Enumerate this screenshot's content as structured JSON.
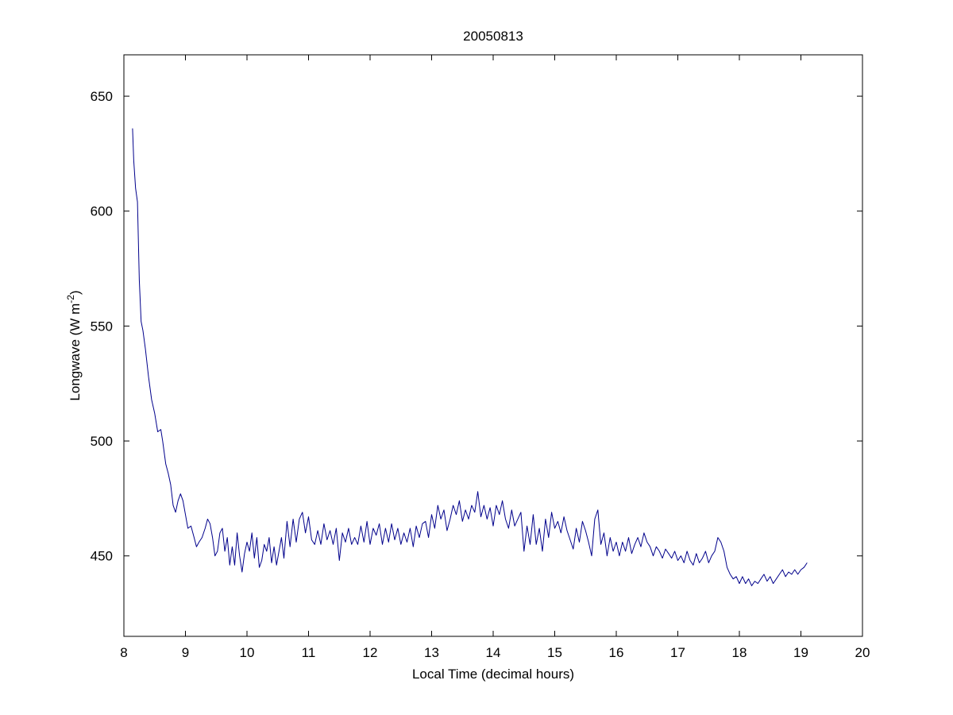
{
  "chart_data": {
    "type": "line",
    "title": "20050813",
    "xlabel": "Local Time (decimal hours)",
    "ylabel": {
      "text": "Longwave (W m",
      "superscript": "-2",
      "suffix": ")"
    },
    "xlim": [
      8,
      20
    ],
    "ylim": [
      415,
      668
    ],
    "xticks": [
      "8",
      "9",
      "10",
      "11",
      "12",
      "13",
      "14",
      "15",
      "16",
      "17",
      "18",
      "19",
      "20"
    ],
    "yticks": [
      "450",
      "500",
      "550",
      "600",
      "650"
    ],
    "grid": false,
    "line_color": "#00008B",
    "series": [
      {
        "points": [
          [
            8.14,
            636
          ],
          [
            8.16,
            622
          ],
          [
            8.19,
            610
          ],
          [
            8.22,
            604
          ],
          [
            8.25,
            570
          ],
          [
            8.28,
            552
          ],
          [
            8.31,
            548
          ],
          [
            8.35,
            540
          ],
          [
            8.4,
            528
          ],
          [
            8.45,
            518
          ],
          [
            8.5,
            512
          ],
          [
            8.55,
            504
          ],
          [
            8.6,
            505
          ],
          [
            8.63,
            500
          ],
          [
            8.68,
            490
          ],
          [
            8.72,
            486
          ],
          [
            8.76,
            481
          ],
          [
            8.8,
            472
          ],
          [
            8.84,
            469
          ],
          [
            8.88,
            474
          ],
          [
            8.92,
            477
          ],
          [
            8.96,
            474
          ],
          [
            9.0,
            468
          ],
          [
            9.04,
            462
          ],
          [
            9.09,
            463
          ],
          [
            9.14,
            458
          ],
          [
            9.18,
            454
          ],
          [
            9.22,
            456
          ],
          [
            9.27,
            458
          ],
          [
            9.32,
            462
          ],
          [
            9.36,
            466
          ],
          [
            9.4,
            464
          ],
          [
            9.44,
            458
          ],
          [
            9.48,
            450
          ],
          [
            9.52,
            452
          ],
          [
            9.56,
            460
          ],
          [
            9.6,
            462
          ],
          [
            9.64,
            452
          ],
          [
            9.68,
            458
          ],
          [
            9.72,
            446
          ],
          [
            9.76,
            454
          ],
          [
            9.8,
            446
          ],
          [
            9.84,
            460
          ],
          [
            9.88,
            450
          ],
          [
            9.92,
            443
          ],
          [
            9.96,
            451
          ],
          [
            10.0,
            456
          ],
          [
            10.04,
            452
          ],
          [
            10.08,
            460
          ],
          [
            10.12,
            449
          ],
          [
            10.16,
            458
          ],
          [
            10.2,
            445
          ],
          [
            10.24,
            448
          ],
          [
            10.28,
            455
          ],
          [
            10.32,
            452
          ],
          [
            10.36,
            458
          ],
          [
            10.4,
            447
          ],
          [
            10.44,
            454
          ],
          [
            10.48,
            446
          ],
          [
            10.52,
            452
          ],
          [
            10.56,
            458
          ],
          [
            10.6,
            449
          ],
          [
            10.65,
            465
          ],
          [
            10.7,
            454
          ],
          [
            10.75,
            466
          ],
          [
            10.8,
            456
          ],
          [
            10.85,
            466
          ],
          [
            10.9,
            469
          ],
          [
            10.95,
            460
          ],
          [
            11.0,
            467
          ],
          [
            11.05,
            457
          ],
          [
            11.1,
            455
          ],
          [
            11.15,
            461
          ],
          [
            11.2,
            455
          ],
          [
            11.25,
            464
          ],
          [
            11.3,
            457
          ],
          [
            11.35,
            461
          ],
          [
            11.4,
            455
          ],
          [
            11.45,
            462
          ],
          [
            11.5,
            448
          ],
          [
            11.55,
            460
          ],
          [
            11.6,
            456
          ],
          [
            11.65,
            462
          ],
          [
            11.7,
            455
          ],
          [
            11.75,
            458
          ],
          [
            11.8,
            455
          ],
          [
            11.85,
            463
          ],
          [
            11.9,
            456
          ],
          [
            11.95,
            465
          ],
          [
            12.0,
            455
          ],
          [
            12.05,
            462
          ],
          [
            12.1,
            459
          ],
          [
            12.15,
            464
          ],
          [
            12.2,
            455
          ],
          [
            12.25,
            462
          ],
          [
            12.3,
            456
          ],
          [
            12.35,
            464
          ],
          [
            12.4,
            457
          ],
          [
            12.45,
            462
          ],
          [
            12.5,
            455
          ],
          [
            12.55,
            460
          ],
          [
            12.6,
            456
          ],
          [
            12.65,
            462
          ],
          [
            12.7,
            454
          ],
          [
            12.75,
            463
          ],
          [
            12.8,
            458
          ],
          [
            12.85,
            464
          ],
          [
            12.9,
            465
          ],
          [
            12.95,
            458
          ],
          [
            13.0,
            468
          ],
          [
            13.05,
            462
          ],
          [
            13.1,
            472
          ],
          [
            13.15,
            466
          ],
          [
            13.2,
            470
          ],
          [
            13.25,
            461
          ],
          [
            13.3,
            466
          ],
          [
            13.35,
            472
          ],
          [
            13.4,
            468
          ],
          [
            13.45,
            474
          ],
          [
            13.5,
            465
          ],
          [
            13.55,
            470
          ],
          [
            13.6,
            466
          ],
          [
            13.65,
            472
          ],
          [
            13.7,
            469
          ],
          [
            13.75,
            478
          ],
          [
            13.8,
            467
          ],
          [
            13.85,
            472
          ],
          [
            13.9,
            466
          ],
          [
            13.95,
            471
          ],
          [
            14.0,
            463
          ],
          [
            14.05,
            472
          ],
          [
            14.1,
            468
          ],
          [
            14.15,
            474
          ],
          [
            14.2,
            466
          ],
          [
            14.25,
            462
          ],
          [
            14.3,
            470
          ],
          [
            14.35,
            463
          ],
          [
            14.4,
            466
          ],
          [
            14.45,
            469
          ],
          [
            14.5,
            452
          ],
          [
            14.55,
            463
          ],
          [
            14.6,
            455
          ],
          [
            14.65,
            468
          ],
          [
            14.7,
            455
          ],
          [
            14.75,
            462
          ],
          [
            14.8,
            452
          ],
          [
            14.85,
            466
          ],
          [
            14.9,
            458
          ],
          [
            14.95,
            469
          ],
          [
            15.0,
            462
          ],
          [
            15.05,
            465
          ],
          [
            15.1,
            460
          ],
          [
            15.15,
            467
          ],
          [
            15.2,
            461
          ],
          [
            15.25,
            457
          ],
          [
            15.3,
            453
          ],
          [
            15.35,
            462
          ],
          [
            15.4,
            456
          ],
          [
            15.45,
            465
          ],
          [
            15.5,
            461
          ],
          [
            15.55,
            456
          ],
          [
            15.6,
            450
          ],
          [
            15.65,
            466
          ],
          [
            15.7,
            470
          ],
          [
            15.75,
            455
          ],
          [
            15.8,
            460
          ],
          [
            15.85,
            450
          ],
          [
            15.9,
            458
          ],
          [
            15.95,
            452
          ],
          [
            16.0,
            456
          ],
          [
            16.05,
            450
          ],
          [
            16.1,
            456
          ],
          [
            16.15,
            452
          ],
          [
            16.2,
            458
          ],
          [
            16.25,
            451
          ],
          [
            16.3,
            455
          ],
          [
            16.35,
            458
          ],
          [
            16.4,
            454
          ],
          [
            16.45,
            460
          ],
          [
            16.5,
            456
          ],
          [
            16.55,
            454
          ],
          [
            16.6,
            450
          ],
          [
            16.65,
            454
          ],
          [
            16.7,
            452
          ],
          [
            16.75,
            449
          ],
          [
            16.8,
            453
          ],
          [
            16.85,
            451
          ],
          [
            16.9,
            449
          ],
          [
            16.95,
            452
          ],
          [
            17.0,
            448
          ],
          [
            17.05,
            450
          ],
          [
            17.1,
            447
          ],
          [
            17.15,
            452
          ],
          [
            17.2,
            448
          ],
          [
            17.25,
            446
          ],
          [
            17.3,
            451
          ],
          [
            17.35,
            447
          ],
          [
            17.4,
            449
          ],
          [
            17.45,
            452
          ],
          [
            17.5,
            447
          ],
          [
            17.55,
            450
          ],
          [
            17.6,
            452
          ],
          [
            17.65,
            458
          ],
          [
            17.7,
            456
          ],
          [
            17.75,
            452
          ],
          [
            17.8,
            445
          ],
          [
            17.85,
            442
          ],
          [
            17.9,
            440
          ],
          [
            17.95,
            441
          ],
          [
            18.0,
            438
          ],
          [
            18.05,
            441
          ],
          [
            18.1,
            438
          ],
          [
            18.15,
            440
          ],
          [
            18.2,
            437
          ],
          [
            18.25,
            439
          ],
          [
            18.3,
            438
          ],
          [
            18.35,
            440
          ],
          [
            18.4,
            442
          ],
          [
            18.45,
            439
          ],
          [
            18.5,
            441
          ],
          [
            18.55,
            438
          ],
          [
            18.6,
            440
          ],
          [
            18.65,
            442
          ],
          [
            18.7,
            444
          ],
          [
            18.75,
            441
          ],
          [
            18.8,
            443
          ],
          [
            18.85,
            442
          ],
          [
            18.9,
            444
          ],
          [
            18.95,
            442
          ],
          [
            19.0,
            444
          ],
          [
            19.05,
            445
          ],
          [
            19.1,
            447
          ]
        ]
      }
    ]
  }
}
